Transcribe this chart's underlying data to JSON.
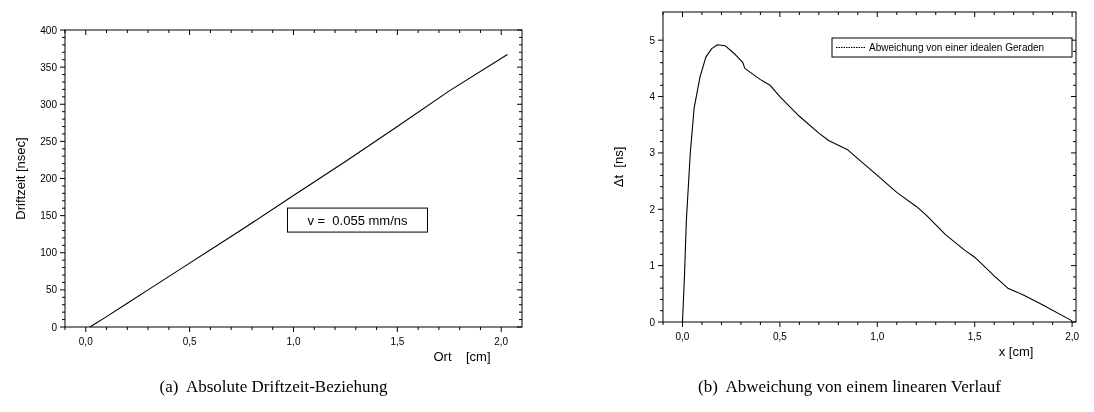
{
  "chart_data": [
    {
      "type": "line",
      "xlabel": "Ort    [cm]",
      "ylabel": "Driftzeit [nsec]",
      "annotations": [
        "v =  0.055 mm/ns",
        "(a)  Absolute Driftzeit-Beziehung"
      ],
      "series": [
        {
          "color": "#000000",
          "x": [
            0.02,
            0.1,
            0.2,
            0.3,
            0.5,
            0.75,
            1.0,
            1.25,
            1.5,
            1.75,
            2.03
          ],
          "values": [
            0,
            14,
            32,
            50,
            86,
            131,
            177,
            223,
            270,
            318,
            367
          ]
        }
      ],
      "xlim": [
        -0.1,
        2.1
      ],
      "xticks": [
        {
          "value": 0,
          "label": "0,0"
        },
        {
          "value": 0.5,
          "label": "0,5"
        },
        {
          "value": 1,
          "label": "1,0"
        },
        {
          "value": 1.5,
          "label": "1,5"
        },
        {
          "value": 2,
          "label": "2,0"
        }
      ],
      "ylim": [
        0,
        400
      ],
      "yticks": [
        0,
        50,
        100,
        150,
        200,
        250,
        300,
        350,
        400
      ],
      "grid": false,
      "legend": false
    },
    {
      "type": "line",
      "xlabel": "x [cm]",
      "ylabel": "Δt  [ns]",
      "annotations": [
        "(b)  Abweichung von einem linearen Verlauf"
      ],
      "legend": "top right",
      "series": [
        {
          "name": "Abweichung von einer idealen Geraden",
          "color": "#000000",
          "x": [
            0,
            0.01,
            0.02,
            0.04,
            0.06,
            0.09,
            0.12,
            0.15,
            0.18,
            0.22,
            0.27,
            0.31,
            0.32,
            0.4,
            0.45,
            0.5,
            0.6,
            0.7,
            0.75,
            0.85,
            0.9,
            1.0,
            1.1,
            1.2,
            1.25,
            1.35,
            1.45,
            1.5,
            1.6,
            1.67,
            1.75,
            1.85,
            2.0
          ],
          "values": [
            0,
            0.8,
            1.8,
            3.0,
            3.8,
            4.35,
            4.7,
            4.85,
            4.92,
            4.9,
            4.75,
            4.6,
            4.5,
            4.3,
            4.2,
            4.0,
            3.65,
            3.35,
            3.22,
            3.05,
            2.9,
            2.6,
            2.3,
            2.05,
            1.9,
            1.55,
            1.27,
            1.15,
            0.82,
            0.6,
            0.48,
            0.3,
            0.02
          ]
        }
      ],
      "xlim": [
        -0.1,
        2.02
      ],
      "xticks": [
        {
          "value": 0,
          "label": "0,0"
        },
        {
          "value": 0.5,
          "label": "0,5"
        },
        {
          "value": 1,
          "label": "1,0"
        },
        {
          "value": 1.5,
          "label": "1,5"
        },
        {
          "value": 2,
          "label": "2,0"
        }
      ],
      "ylim": [
        0,
        5.5
      ],
      "yticks": [
        0,
        1,
        2,
        3,
        4,
        5
      ],
      "grid": false
    }
  ]
}
